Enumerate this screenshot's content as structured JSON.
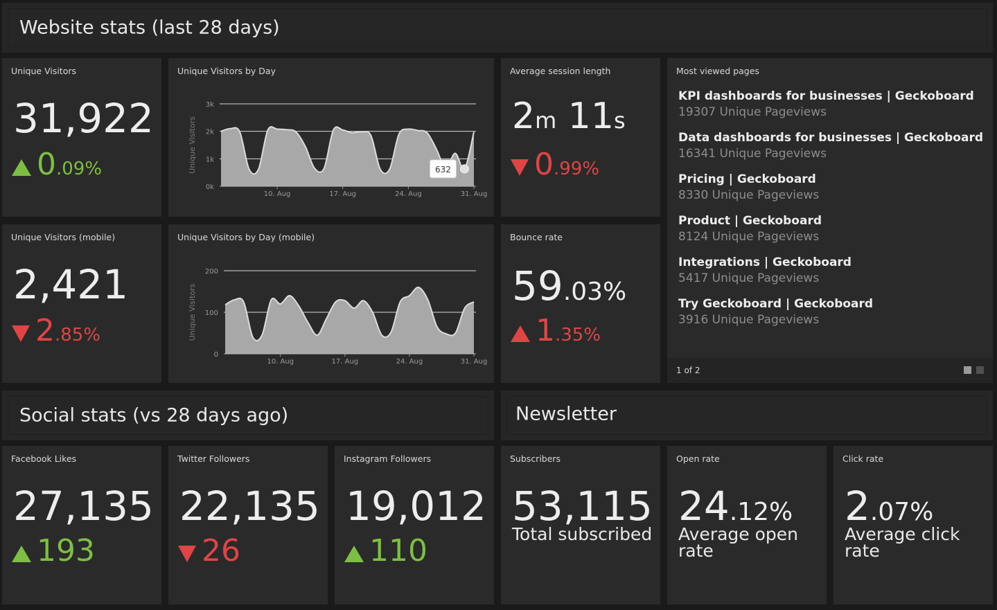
{
  "website_header": "Website stats (last 28 days)",
  "unique_visitors": {
    "title": "Unique Visitors",
    "value": "31,922",
    "delta_main": "0",
    "delta_frac": ".09%",
    "direction": "up"
  },
  "unique_visitors_mobile": {
    "title": "Unique Visitors (mobile)",
    "value": "2,421",
    "delta_main": "2",
    "delta_frac": ".85%",
    "direction": "down"
  },
  "avg_session": {
    "title": "Average session length",
    "minutes": "2",
    "m_unit": "m",
    "seconds": "11",
    "s_unit": "s",
    "delta_main": "0",
    "delta_frac": ".99%",
    "direction": "down"
  },
  "bounce_rate": {
    "title": "Bounce rate",
    "value_main": "59",
    "value_frac": ".03%",
    "delta_main": "1",
    "delta_frac": ".35%",
    "direction": "up"
  },
  "most_viewed": {
    "title": "Most viewed pages",
    "pages": [
      {
        "title": "KPI dashboards for businesses | Geckoboard",
        "views": "19307 Unique Pageviews"
      },
      {
        "title": "Data dashboards for businesses | Geckoboard",
        "views": "16341 Unique Pageviews"
      },
      {
        "title": "Pricing | Geckoboard",
        "views": "8330 Unique Pageviews"
      },
      {
        "title": "Product | Geckoboard",
        "views": "8124 Unique Pageviews"
      },
      {
        "title": "Integrations | Geckoboard",
        "views": "5417 Unique Pageviews"
      },
      {
        "title": "Try Geckoboard | Geckoboard",
        "views": "3916 Unique Pageviews"
      }
    ],
    "pager": "1 of 2"
  },
  "social_header": "Social stats (vs 28 days ago)",
  "newsletter_header": "Newsletter",
  "facebook": {
    "title": "Facebook Likes",
    "value": "27,135",
    "delta": "193",
    "direction": "up"
  },
  "twitter": {
    "title": "Twitter Followers",
    "value": "22,135",
    "delta": "26",
    "direction": "down"
  },
  "instagram": {
    "title": "Instagram Followers",
    "value": "19,012",
    "delta": "110",
    "direction": "up"
  },
  "subscribers": {
    "title": "Subscribers",
    "value": "53,115",
    "label": "Total subscribed"
  },
  "open_rate": {
    "title": "Open rate",
    "value_main": "24",
    "value_frac": ".12%",
    "label": "Average open rate"
  },
  "click_rate": {
    "title": "Click rate",
    "value_main": "2",
    "value_frac": ".07%",
    "label": "Average click rate"
  },
  "colors": {
    "green": "#7dbf42",
    "red": "#e04545",
    "area": "#a8a8a8"
  },
  "chart_data": [
    {
      "type": "area",
      "title": "Unique Visitors by Day",
      "ylabel": "Unique Visitors",
      "xlabel": "",
      "ylim": [
        0,
        3000
      ],
      "yticks": [
        "0k",
        "1k",
        "2k",
        "3k"
      ],
      "ytick_values": [
        0,
        1000,
        2000,
        3000
      ],
      "xticks": [
        "10. Aug",
        "17. Aug",
        "24. Aug",
        "31. Aug"
      ],
      "xtick_index": [
        6,
        13,
        20,
        27
      ],
      "values": [
        2000,
        2100,
        1980,
        620,
        620,
        2050,
        2080,
        2060,
        1980,
        1450,
        650,
        650,
        2050,
        2050,
        1950,
        1980,
        1850,
        620,
        620,
        1900,
        2080,
        2030,
        1950,
        1350,
        650,
        1200,
        632,
        1980
      ],
      "tooltip": {
        "index": 26,
        "label": "632"
      }
    },
    {
      "type": "area",
      "title": "Unique Visitors by Day (mobile)",
      "ylabel": "Unique Visitors",
      "xlabel": "",
      "ylim": [
        0,
        200
      ],
      "yticks": [
        "0",
        "100",
        "200"
      ],
      "ytick_values": [
        0,
        100,
        200
      ],
      "xticks": [
        "10. Aug",
        "17. Aug",
        "24. Aug",
        "31. Aug"
      ],
      "xtick_index": [
        6,
        13,
        20,
        27
      ],
      "values": [
        118,
        130,
        125,
        40,
        45,
        130,
        120,
        140,
        115,
        75,
        45,
        85,
        125,
        128,
        110,
        128,
        100,
        45,
        52,
        125,
        140,
        160,
        130,
        65,
        48,
        50,
        110,
        125
      ]
    }
  ]
}
